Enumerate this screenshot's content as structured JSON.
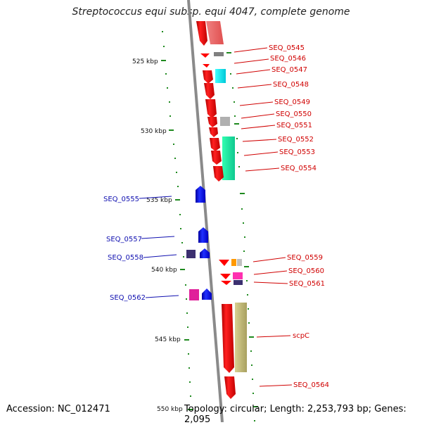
{
  "title": "Streptococcus equi subsp. equi 4047, complete genome",
  "accession": "Accession: NC_012471",
  "topology": "Topology: circular; Length: 2,253,793 bp; Genes: 2,095",
  "colors": {
    "backbone": "#8a8a8a",
    "tick": "#1f8a1f",
    "gene_red": "#ff0000",
    "gene_blue": "#0000ff",
    "label_red": "#d00000",
    "label_blue": "#1010b0"
  },
  "kbp_labels": [
    {
      "id": "kbp-525",
      "text": "525 kbp"
    },
    {
      "id": "kbp-530",
      "text": "530 kbp"
    },
    {
      "id": "kbp-535",
      "text": "535 kbp"
    },
    {
      "id": "kbp-540",
      "text": "540 kbp"
    },
    {
      "id": "kbp-545",
      "text": "545 kbp"
    },
    {
      "id": "kbp-550",
      "text": "550 kbp"
    }
  ],
  "right_labels": [
    {
      "id": "seq-0545",
      "text": "SEQ_0545"
    },
    {
      "id": "seq-0546",
      "text": "SEQ_0546"
    },
    {
      "id": "seq-0547",
      "text": "SEQ_0547"
    },
    {
      "id": "seq-0548",
      "text": "SEQ_0548"
    },
    {
      "id": "seq-0549",
      "text": "SEQ_0549"
    },
    {
      "id": "seq-0550",
      "text": "SEQ_0550"
    },
    {
      "id": "seq-0551",
      "text": "SEQ_0551"
    },
    {
      "id": "seq-0552",
      "text": "SEQ_0552"
    },
    {
      "id": "seq-0553",
      "text": "SEQ_0553"
    },
    {
      "id": "seq-0554",
      "text": "SEQ_0554"
    },
    {
      "id": "seq-0559",
      "text": "SEQ_0559"
    },
    {
      "id": "seq-0560",
      "text": "SEQ_0560"
    },
    {
      "id": "seq-0561",
      "text": "SEQ_0561"
    },
    {
      "id": "scpc",
      "text": "scpC"
    },
    {
      "id": "seq-0564",
      "text": "SEQ_0564"
    }
  ],
  "left_labels": [
    {
      "id": "seq-0555",
      "text": "SEQ_0555"
    },
    {
      "id": "seq-0557",
      "text": "SEQ_0557"
    },
    {
      "id": "seq-0558",
      "text": "SEQ_0558"
    },
    {
      "id": "seq-0562",
      "text": "SEQ_0562"
    }
  ]
}
